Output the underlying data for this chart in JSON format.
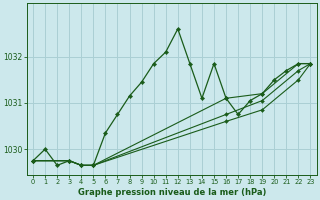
{
  "title": "Graphe pression niveau de la mer (hPa)",
  "bg_color": "#cce8ec",
  "grid_color": "#aacfd4",
  "line_color": "#1a5c1a",
  "xlim": [
    -0.5,
    23.5
  ],
  "ylim": [
    1029.45,
    1033.15
  ],
  "xticks": [
    0,
    1,
    2,
    3,
    4,
    5,
    6,
    7,
    8,
    9,
    10,
    11,
    12,
    13,
    14,
    15,
    16,
    17,
    18,
    19,
    20,
    21,
    22,
    23
  ],
  "yticks": [
    1030,
    1031,
    1032
  ],
  "main_x": [
    0,
    1,
    2,
    3,
    4,
    5,
    6,
    7,
    8,
    9,
    10,
    11,
    12,
    13,
    14,
    15,
    16,
    17,
    18,
    19,
    20,
    21,
    22,
    23
  ],
  "main_y": [
    1029.75,
    1030.0,
    1029.65,
    1029.75,
    1029.65,
    1029.65,
    1030.35,
    1030.75,
    1031.15,
    1031.45,
    1031.85,
    1032.1,
    1032.6,
    1031.85,
    1031.1,
    1031.85,
    1031.1,
    1030.75,
    1031.05,
    1031.2,
    1031.5,
    1031.7,
    1031.85,
    1031.85
  ],
  "extra_lines": [
    {
      "x": [
        0,
        3,
        4,
        5,
        16,
        19,
        22,
        23
      ],
      "y": [
        1029.75,
        1029.75,
        1029.65,
        1029.65,
        1031.1,
        1031.2,
        1031.85,
        1031.85
      ]
    },
    {
      "x": [
        0,
        3,
        4,
        5,
        16,
        19,
        22,
        23
      ],
      "y": [
        1029.75,
        1029.75,
        1029.65,
        1029.65,
        1030.75,
        1031.05,
        1031.7,
        1031.85
      ]
    },
    {
      "x": [
        0,
        3,
        4,
        5,
        16,
        19,
        22,
        23
      ],
      "y": [
        1029.75,
        1029.75,
        1029.65,
        1029.65,
        1030.6,
        1030.85,
        1031.5,
        1031.85
      ]
    }
  ]
}
